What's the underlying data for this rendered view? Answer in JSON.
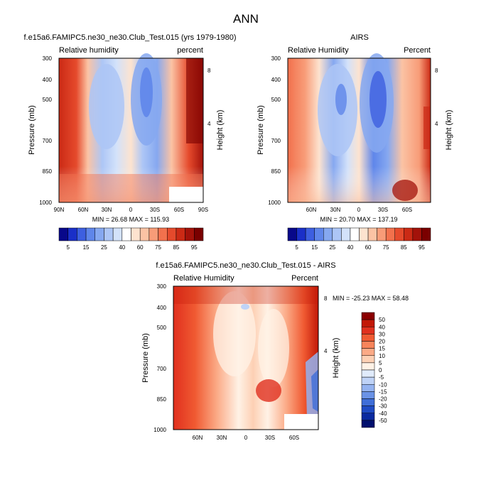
{
  "page_title": "ANN",
  "panel_top_left": {
    "title": "f.e15a6.FAMIPC5.ne30_ne30.Club_Test.015 (yrs 1979-1980)",
    "left_label": "Relative humidity",
    "right_label": "percent",
    "stats": "MIN =  26.68  MAX = 115.93"
  },
  "panel_top_right": {
    "title": "AIRS",
    "left_label": "Relative Humidity",
    "right_label": "Percent",
    "stats": "MIN =  20.70  MAX = 137.19"
  },
  "panel_bottom": {
    "title": "f.e15a6.FAMIPC5.ne30_ne30.Club_Test.015 - AIRS",
    "left_label": "Relative Humidity",
    "right_label": "Percent",
    "stats": "MIN = -25.23  MAX =  58.48"
  },
  "axes": {
    "y_label": "Pressure (mb)",
    "y2_label": "Height (km)",
    "pressure_ticks": [
      "300",
      "400",
      "500",
      "700",
      "850",
      "1000"
    ],
    "height_ticks": [
      "8",
      "4"
    ],
    "lat_ticks_top_left": [
      "90N",
      "60N",
      "30N",
      "0",
      "30S",
      "60S",
      "90S"
    ],
    "lat_ticks_other": [
      "60N",
      "30N",
      "0",
      "30S",
      "60S"
    ]
  },
  "colorbar_rh": {
    "labels": [
      "5",
      "15",
      "25",
      "40",
      "60",
      "75",
      "85",
      "95"
    ],
    "colors": [
      "#08088a",
      "#1a2fc8",
      "#3d5fe0",
      "#5f86ea",
      "#86a8f0",
      "#adc6f6",
      "#d3e2fa",
      "#ffffff",
      "#fde3cf",
      "#fbc3a4",
      "#f89c78",
      "#f2714d",
      "#e54a2c",
      "#cb2a15",
      "#a3120a",
      "#7a0000"
    ]
  },
  "colorbar_diff": {
    "labels": [
      "50",
      "40",
      "30",
      "20",
      "15",
      "10",
      "5",
      "0",
      "-5",
      "-10",
      "-15",
      "-20",
      "-30",
      "-40",
      "-50"
    ],
    "colors": [
      "#8b0000",
      "#c21807",
      "#e0301e",
      "#f05a32",
      "#f7845a",
      "#fbaa86",
      "#fdd0b4",
      "#fff2e6",
      "#e0ebfb",
      "#bfd3f7",
      "#94b3f0",
      "#6a92e6",
      "#3f6ed8",
      "#1f4bc4",
      "#0a2aa0",
      "#00106e"
    ]
  },
  "chart_data": [
    {
      "type": "heatmap",
      "title": "f.e15a6.FAMIPC5.ne30_ne30.Club_Test.015 (yrs 1979-1980)",
      "xlabel": "",
      "ylabel": "Pressure (mb)",
      "y2label": "Height (km)",
      "x_range": [
        90,
        -90
      ],
      "ylim": [
        1000,
        300
      ],
      "min": 26.68,
      "max": 115.93,
      "units": "percent"
    },
    {
      "type": "heatmap",
      "title": "AIRS",
      "xlabel": "",
      "ylabel": "Pressure (mb)",
      "y2label": "Height (km)",
      "x_range": [
        90,
        -90
      ],
      "ylim": [
        1000,
        300
      ],
      "min": 20.7,
      "max": 137.19,
      "units": "Percent"
    },
    {
      "type": "heatmap",
      "title": "f.e15a6.FAMIPC5.ne30_ne30.Club_Test.015 - AIRS",
      "xlabel": "",
      "ylabel": "Pressure (mb)",
      "y2label": "Height (km)",
      "x_range": [
        90,
        -90
      ],
      "ylim": [
        1000,
        300
      ],
      "min": -25.23,
      "max": 58.48,
      "units": "Percent"
    }
  ]
}
